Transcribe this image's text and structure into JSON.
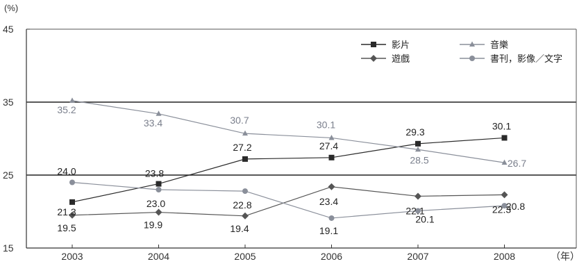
{
  "chart_data": {
    "type": "line",
    "y_unit": "(%)",
    "x_unit": "（年）",
    "ylim": [
      15,
      45
    ],
    "yticks": [
      15,
      25,
      35,
      45
    ],
    "categories": [
      "2003",
      "2004",
      "2005",
      "2006",
      "2007",
      "2008"
    ],
    "grid": "horizontal lines at 25 and 35",
    "legend_position": "top-right",
    "series": [
      {
        "name": "影片",
        "marker": "square",
        "color": "#2a2a2a",
        "label_color": "#222222",
        "values": [
          21.3,
          23.8,
          27.2,
          27.4,
          29.3,
          30.1
        ],
        "labels": [
          "21.3",
          "23.8",
          "27.2",
          "27.4",
          "29.3",
          "30.1"
        ]
      },
      {
        "name": "音樂",
        "marker": "triangle",
        "color": "#8a8f9a",
        "label_color": "#7a7f8c",
        "values": [
          35.2,
          33.4,
          30.7,
          30.1,
          28.5,
          26.7
        ],
        "labels": [
          "35.2",
          "33.4",
          "30.7",
          "30.1",
          "28.5",
          "26.7"
        ]
      },
      {
        "name": "遊戲",
        "marker": "diamond",
        "color": "#555555",
        "label_color": "#222222",
        "values": [
          19.5,
          19.9,
          19.4,
          23.4,
          22.1,
          22.3
        ],
        "labels": [
          "19.5",
          "19.9",
          "19.4",
          "23.4",
          "22.1",
          "22.3"
        ]
      },
      {
        "name": "書刊，影像／文字",
        "marker": "circle",
        "color": "#8a8f9a",
        "label_color": "#222222",
        "values": [
          24.0,
          23.0,
          22.8,
          19.1,
          20.1,
          20.8
        ],
        "labels": [
          "24.0",
          "23.0",
          "22.8",
          "19.1",
          "20.1",
          "20.8"
        ]
      }
    ]
  }
}
